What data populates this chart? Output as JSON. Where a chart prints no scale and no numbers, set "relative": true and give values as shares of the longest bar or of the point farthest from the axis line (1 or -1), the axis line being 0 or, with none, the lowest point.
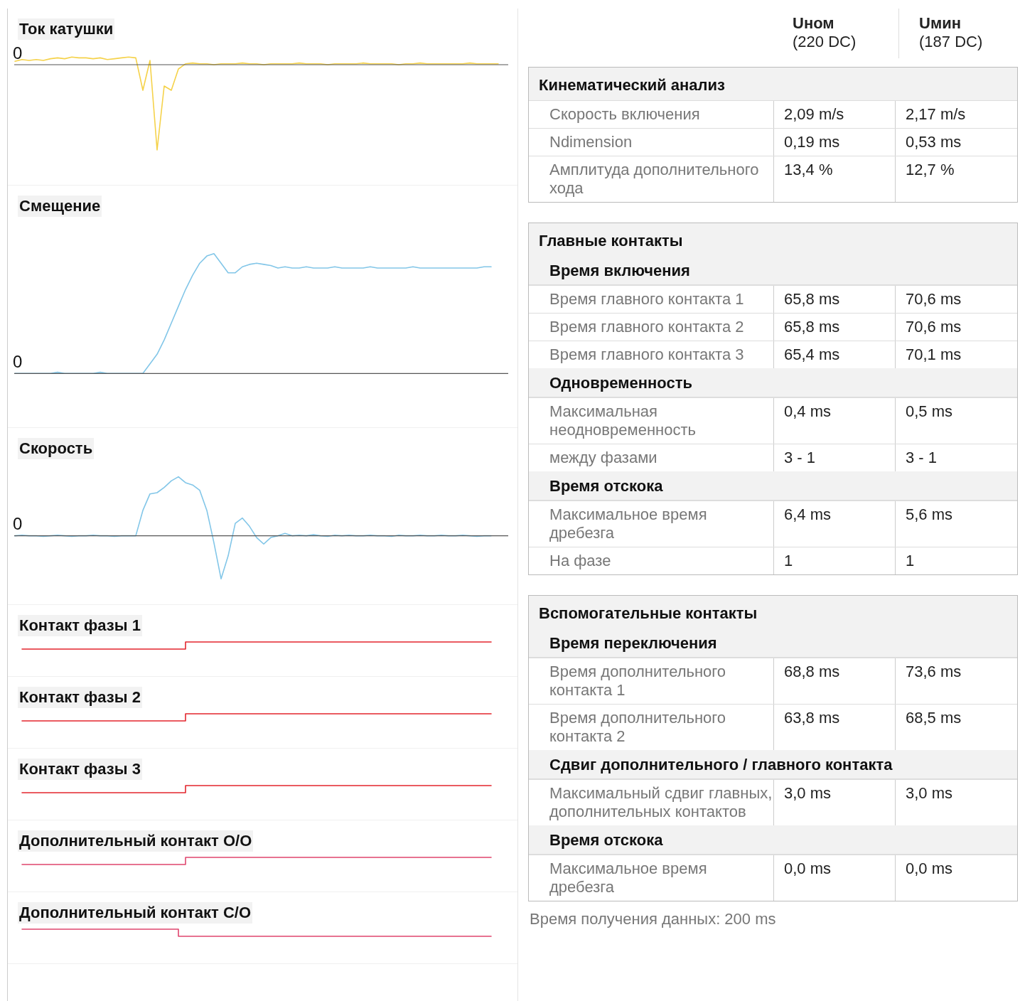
{
  "chart_data": [
    {
      "type": "line",
      "title": "Ток катушки",
      "relative": true,
      "color": "#f5d24a",
      "categories": [
        null,
        null,
        null,
        null,
        null,
        null,
        null,
        null,
        null,
        null,
        null,
        null,
        null,
        null,
        null,
        null,
        null,
        null,
        null,
        null,
        null,
        null,
        null,
        null,
        null,
        null,
        null,
        null,
        null,
        null,
        null,
        null,
        null,
        null,
        null,
        null,
        null,
        null,
        null,
        null,
        null,
        null,
        null,
        null,
        null,
        null,
        null,
        null,
        null,
        null,
        null,
        null,
        null,
        null,
        null,
        null,
        null,
        null,
        null,
        null,
        null,
        null,
        null,
        null,
        null,
        null,
        null,
        null,
        null
      ],
      "values": [
        0.04,
        0.06,
        0.05,
        0.06,
        0.05,
        0.07,
        0.08,
        0.07,
        0.09,
        0.08,
        0.08,
        0.07,
        0.08,
        0.06,
        0.07,
        0.08,
        0.09,
        0.08,
        -0.3,
        0.05,
        -1,
        -0.25,
        -0.3,
        -0.05,
        0.01,
        0.02,
        0.01,
        0.01,
        0,
        0.01,
        0.01,
        0.01,
        0.02,
        0.01,
        0.01,
        0,
        0.01,
        0.01,
        0.01,
        0.01,
        0.02,
        0.01,
        0.01,
        0.01,
        0,
        0.01,
        0.01,
        0.01,
        0.01,
        0.02,
        0.01,
        0.01,
        0.01,
        0.01,
        0,
        0.01,
        0.01,
        0.02,
        0.01,
        0.01,
        0.01,
        0.01,
        0.01,
        0.01,
        0.02,
        0.01,
        0.01,
        0.01,
        0.01
      ],
      "ref_lines": [
        {
          "axis": "y",
          "value": 0,
          "label": "0",
          "color": "#555555"
        }
      ]
    },
    {
      "type": "line",
      "title": "Смещение",
      "relative": true,
      "color": "#82c6e8",
      "categories": [
        null,
        null,
        null,
        null,
        null,
        null,
        null,
        null,
        null,
        null,
        null,
        null,
        null,
        null,
        null,
        null,
        null,
        null,
        null,
        null,
        null,
        null,
        null,
        null,
        null,
        null,
        null,
        null,
        null,
        null,
        null,
        null,
        null,
        null,
        null,
        null,
        null,
        null,
        null,
        null,
        null,
        null,
        null,
        null,
        null,
        null,
        null,
        null,
        null,
        null,
        null,
        null,
        null,
        null,
        null,
        null,
        null,
        null,
        null,
        null,
        null,
        null,
        null,
        null,
        null,
        null,
        null,
        null,
        null
      ],
      "values": [
        0,
        0,
        0,
        0,
        0,
        0,
        0.01,
        0,
        0,
        0,
        0,
        0,
        0.01,
        0,
        0,
        0,
        0,
        0,
        0,
        0.08,
        0.16,
        0.28,
        0.42,
        0.56,
        0.7,
        0.82,
        0.92,
        0.98,
        1,
        0.92,
        0.84,
        0.84,
        0.89,
        0.91,
        0.92,
        0.91,
        0.9,
        0.88,
        0.89,
        0.88,
        0.88,
        0.89,
        0.88,
        0.88,
        0.88,
        0.89,
        0.88,
        0.88,
        0.88,
        0.88,
        0.89,
        0.88,
        0.88,
        0.88,
        0.88,
        0.88,
        0.89,
        0.88,
        0.88,
        0.88,
        0.88,
        0.88,
        0.88,
        0.88,
        0.88,
        0.88,
        0.89,
        0.89,
        null
      ],
      "ref_lines": [
        {
          "axis": "y",
          "value": 0,
          "label": "0",
          "color": "#555555"
        }
      ]
    },
    {
      "type": "line",
      "title": "Скорость",
      "relative": true,
      "color": "#82c6e8",
      "categories": [
        null,
        null,
        null,
        null,
        null,
        null,
        null,
        null,
        null,
        null,
        null,
        null,
        null,
        null,
        null,
        null,
        null,
        null,
        null,
        null,
        null,
        null,
        null,
        null,
        null,
        null,
        null,
        null,
        null,
        null,
        null,
        null,
        null,
        null,
        null,
        null,
        null,
        null,
        null,
        null,
        null,
        null,
        null,
        null,
        null,
        null,
        null,
        null,
        null,
        null,
        null,
        null,
        null,
        null,
        null,
        null,
        null,
        null,
        null,
        null,
        null,
        null,
        null,
        null,
        null,
        null,
        null,
        null,
        null
      ],
      "values": [
        0,
        0.01,
        0,
        0,
        -0.01,
        0,
        0.01,
        0,
        -0.01,
        0,
        0,
        0.01,
        0,
        0,
        -0.01,
        0,
        0,
        0,
        0.43,
        0.71,
        0.73,
        0.82,
        0.93,
        1,
        0.9,
        0.86,
        0.77,
        0.43,
        -0.12,
        -0.73,
        -0.34,
        0.21,
        0.3,
        0.16,
        -0.03,
        -0.14,
        -0.03,
        0,
        0.04,
        0,
        0.01,
        0,
        0.02,
        0,
        -0.01,
        0.01,
        0,
        0.01,
        0,
        0,
        0.01,
        0,
        0,
        -0.01,
        0.01,
        0,
        0,
        0.01,
        0,
        0,
        0.01,
        0,
        0,
        0.01,
        0,
        -0.01,
        0,
        0,
        null
      ],
      "ref_lines": [
        {
          "axis": "y",
          "value": 0,
          "label": "0",
          "color": "#555555"
        }
      ]
    },
    {
      "type": "step",
      "title": "Контакт фазы 1",
      "relative": true,
      "color": "#e3262e",
      "categories": [
        null,
        null,
        null,
        null,
        null,
        null,
        null,
        null,
        null,
        null,
        null,
        null,
        null,
        null,
        null,
        null,
        null,
        null,
        null,
        null,
        null,
        null,
        null,
        null,
        null,
        null,
        null,
        null,
        null,
        null,
        null,
        null,
        null,
        null,
        null,
        null,
        null,
        null,
        null,
        null,
        null,
        null,
        null,
        null,
        null,
        null,
        null,
        null,
        null,
        null,
        null,
        null,
        null,
        null,
        null,
        null,
        null,
        null,
        null,
        null,
        null,
        null,
        null,
        null,
        null,
        null,
        null,
        null,
        null
      ],
      "values": [
        null,
        0,
        0,
        0,
        0,
        0,
        0,
        0,
        0,
        0,
        0,
        0,
        0,
        0,
        0,
        0,
        0,
        0,
        0,
        0,
        0,
        0,
        0,
        0,
        1,
        1,
        1,
        1,
        1,
        1,
        1,
        1,
        1,
        1,
        1,
        1,
        1,
        1,
        1,
        1,
        1,
        1,
        1,
        1,
        1,
        1,
        1,
        1,
        1,
        1,
        1,
        1,
        1,
        1,
        1,
        1,
        1,
        1,
        1,
        1,
        1,
        1,
        1,
        1,
        1,
        1,
        1,
        1,
        null
      ]
    },
    {
      "type": "step",
      "title": "Контакт фазы 2",
      "relative": true,
      "color": "#e3262e",
      "categories": [
        null,
        null,
        null,
        null,
        null,
        null,
        null,
        null,
        null,
        null,
        null,
        null,
        null,
        null,
        null,
        null,
        null,
        null,
        null,
        null,
        null,
        null,
        null,
        null,
        null,
        null,
        null,
        null,
        null,
        null,
        null,
        null,
        null,
        null,
        null,
        null,
        null,
        null,
        null,
        null,
        null,
        null,
        null,
        null,
        null,
        null,
        null,
        null,
        null,
        null,
        null,
        null,
        null,
        null,
        null,
        null,
        null,
        null,
        null,
        null,
        null,
        null,
        null,
        null,
        null,
        null,
        null,
        null,
        null
      ],
      "values": [
        null,
        0,
        0,
        0,
        0,
        0,
        0,
        0,
        0,
        0,
        0,
        0,
        0,
        0,
        0,
        0,
        0,
        0,
        0,
        0,
        0,
        0,
        0,
        0,
        1,
        1,
        1,
        1,
        1,
        1,
        1,
        1,
        1,
        1,
        1,
        1,
        1,
        1,
        1,
        1,
        1,
        1,
        1,
        1,
        1,
        1,
        1,
        1,
        1,
        1,
        1,
        1,
        1,
        1,
        1,
        1,
        1,
        1,
        1,
        1,
        1,
        1,
        1,
        1,
        1,
        1,
        1,
        1,
        null
      ]
    },
    {
      "type": "step",
      "title": "Контакт фазы 3",
      "relative": true,
      "color": "#e3262e",
      "categories": [
        null,
        null,
        null,
        null,
        null,
        null,
        null,
        null,
        null,
        null,
        null,
        null,
        null,
        null,
        null,
        null,
        null,
        null,
        null,
        null,
        null,
        null,
        null,
        null,
        null,
        null,
        null,
        null,
        null,
        null,
        null,
        null,
        null,
        null,
        null,
        null,
        null,
        null,
        null,
        null,
        null,
        null,
        null,
        null,
        null,
        null,
        null,
        null,
        null,
        null,
        null,
        null,
        null,
        null,
        null,
        null,
        null,
        null,
        null,
        null,
        null,
        null,
        null,
        null,
        null,
        null,
        null,
        null,
        null
      ],
      "values": [
        null,
        0,
        0,
        0,
        0,
        0,
        0,
        0,
        0,
        0,
        0,
        0,
        0,
        0,
        0,
        0,
        0,
        0,
        0,
        0,
        0,
        0,
        0,
        0,
        1,
        1,
        1,
        1,
        1,
        1,
        1,
        1,
        1,
        1,
        1,
        1,
        1,
        1,
        1,
        1,
        1,
        1,
        1,
        1,
        1,
        1,
        1,
        1,
        1,
        1,
        1,
        1,
        1,
        1,
        1,
        1,
        1,
        1,
        1,
        1,
        1,
        1,
        1,
        1,
        1,
        1,
        1,
        1,
        null
      ]
    },
    {
      "type": "step",
      "title": "Дополнительный контакт O/O",
      "relative": true,
      "color": "#e0466e",
      "categories": [
        null,
        null,
        null,
        null,
        null,
        null,
        null,
        null,
        null,
        null,
        null,
        null,
        null,
        null,
        null,
        null,
        null,
        null,
        null,
        null,
        null,
        null,
        null,
        null,
        null,
        null,
        null,
        null,
        null,
        null,
        null,
        null,
        null,
        null,
        null,
        null,
        null,
        null,
        null,
        null,
        null,
        null,
        null,
        null,
        null,
        null,
        null,
        null,
        null,
        null,
        null,
        null,
        null,
        null,
        null,
        null,
        null,
        null,
        null,
        null,
        null,
        null,
        null,
        null,
        null,
        null,
        null,
        null,
        null
      ],
      "values": [
        null,
        0,
        0,
        0,
        0,
        0,
        0,
        0,
        0,
        0,
        0,
        0,
        0,
        0,
        0,
        0,
        0,
        0,
        0,
        0,
        0,
        0,
        0,
        0,
        1,
        1,
        1,
        1,
        1,
        1,
        1,
        1,
        1,
        1,
        1,
        1,
        1,
        1,
        1,
        1,
        1,
        1,
        1,
        1,
        1,
        1,
        1,
        1,
        1,
        1,
        1,
        1,
        1,
        1,
        1,
        1,
        1,
        1,
        1,
        1,
        1,
        1,
        1,
        1,
        1,
        1,
        1,
        1,
        null
      ]
    },
    {
      "type": "step",
      "title": "Дополнительный контакт C/O",
      "relative": true,
      "color": "#e0466e",
      "categories": [
        null,
        null,
        null,
        null,
        null,
        null,
        null,
        null,
        null,
        null,
        null,
        null,
        null,
        null,
        null,
        null,
        null,
        null,
        null,
        null,
        null,
        null,
        null,
        null,
        null,
        null,
        null,
        null,
        null,
        null,
        null,
        null,
        null,
        null,
        null,
        null,
        null,
        null,
        null,
        null,
        null,
        null,
        null,
        null,
        null,
        null,
        null,
        null,
        null,
        null,
        null,
        null,
        null,
        null,
        null,
        null,
        null,
        null,
        null,
        null,
        null,
        null,
        null,
        null,
        null,
        null,
        null,
        null,
        null
      ],
      "values": [
        null,
        1,
        1,
        1,
        1,
        1,
        1,
        1,
        1,
        1,
        1,
        1,
        1,
        1,
        1,
        1,
        1,
        1,
        1,
        1,
        1,
        1,
        1,
        0,
        0,
        0,
        0,
        0,
        0,
        0,
        0,
        0,
        0,
        0,
        0,
        0,
        0,
        0,
        0,
        0,
        0,
        0,
        0,
        0,
        0,
        0,
        0,
        0,
        0,
        0,
        0,
        0,
        0,
        0,
        0,
        0,
        0,
        0,
        0,
        0,
        0,
        0,
        0,
        0,
        0,
        0,
        0,
        0,
        null
      ]
    },
    {
      "type": "other",
      "annotations": [
        "Uном",
        "(220 DC)",
        "Uмин",
        "(187 DC)",
        "Кинематический анализ",
        "Скорость включения",
        "2,09 m/s",
        "2,17 m/s",
        "Ndimension",
        "0,19 ms",
        "0,53 ms",
        "Амплитуда дополнительного хода",
        "13,4 %",
        "12,7 %",
        "Главные контакты",
        "Время включения",
        "Время главного контакта 1",
        "65,8 ms",
        "70,6 ms",
        "Время главного контакта 2",
        "65,8 ms",
        "70,6 ms",
        "Время главного контакта 3",
        "65,4 ms",
        "70,1 ms",
        "Одновременность",
        "Максимальная неодновременность",
        "0,4 ms",
        "0,5 ms",
        "между фазами",
        "3 - 1",
        "3 - 1",
        "Время отскока",
        "Максимальное время дребезга",
        "6,4 ms",
        "5,6 ms",
        "На фазе",
        "1",
        "1",
        "Вспомогательные контакты",
        "Время переключения",
        "Время дополнительного контакта 1",
        "68,8 ms",
        "73,6 ms",
        "Время дополнительного контакта 2",
        "63,8 ms",
        "68,5 ms",
        "Сдвиг дополнительного / главного контакта",
        "Максимальный сдвиг главных, дополнительных контактов",
        "3,0 ms",
        "3,0 ms",
        "Время отскока",
        "Максимальное время дребезга",
        "0,0 ms",
        "0,0 ms",
        "Время получения данных: 200 ms"
      ]
    }
  ]
}
